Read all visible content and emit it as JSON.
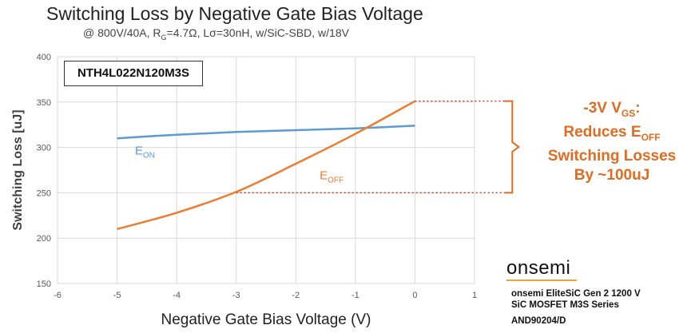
{
  "chart_data": {
    "type": "line",
    "title": "Switching Loss by Negative Gate Bias Voltage",
    "subtitle_parts": {
      "pre": "@ 800V/40A, R",
      "sub": "G",
      "post": "=4.7Ω, Lσ=30nH, w/SiC-SBD, w/18V"
    },
    "xlabel": "Negative Gate Bias Voltage (V)",
    "ylabel": "Switching Loss [uJ]",
    "xlim": [
      -6,
      1
    ],
    "ylim": [
      150,
      400
    ],
    "x_ticks": [
      -6,
      -5,
      -4,
      -3,
      -2,
      -1,
      0,
      1
    ],
    "y_ticks": [
      150,
      200,
      250,
      300,
      350,
      400
    ],
    "grid": true,
    "series": [
      {
        "name": "EON",
        "label_main": "E",
        "label_sub": "ON",
        "color": "#5b9bd5",
        "x": [
          -5,
          -4,
          -3,
          -2,
          -1,
          0
        ],
        "values": [
          310,
          314,
          317,
          319,
          321,
          324
        ]
      },
      {
        "name": "EOFF",
        "label_main": "E",
        "label_sub": "OFF",
        "color": "#ed7d31",
        "x": [
          -5,
          -4,
          -3,
          -2,
          -1,
          0
        ],
        "values": [
          210,
          228,
          251,
          282,
          315,
          351
        ]
      }
    ],
    "reference_lines": [
      {
        "y": 351,
        "x_from": 0,
        "x_to": 1.5,
        "style": "dotted"
      },
      {
        "y": 250,
        "x_from": -3,
        "x_to": 1.5,
        "style": "dotted"
      }
    ]
  },
  "part_number": "NTH4L022N120M3S",
  "annotation": {
    "line1_pre": "-3V V",
    "line1_sub": "GS",
    "line1_post": ":",
    "line2_pre": "Reduces E",
    "line2_sub": "OFF",
    "line3": "Switching Losses",
    "line4": "By ~100uJ",
    "color": "#e26b1f"
  },
  "branding": {
    "logo": "onsemi",
    "line1": "onsemi EliteSiC Gen 2 1200 V",
    "line2": "SiC MOSFET M3S Series",
    "line3": "AND90204/D"
  }
}
